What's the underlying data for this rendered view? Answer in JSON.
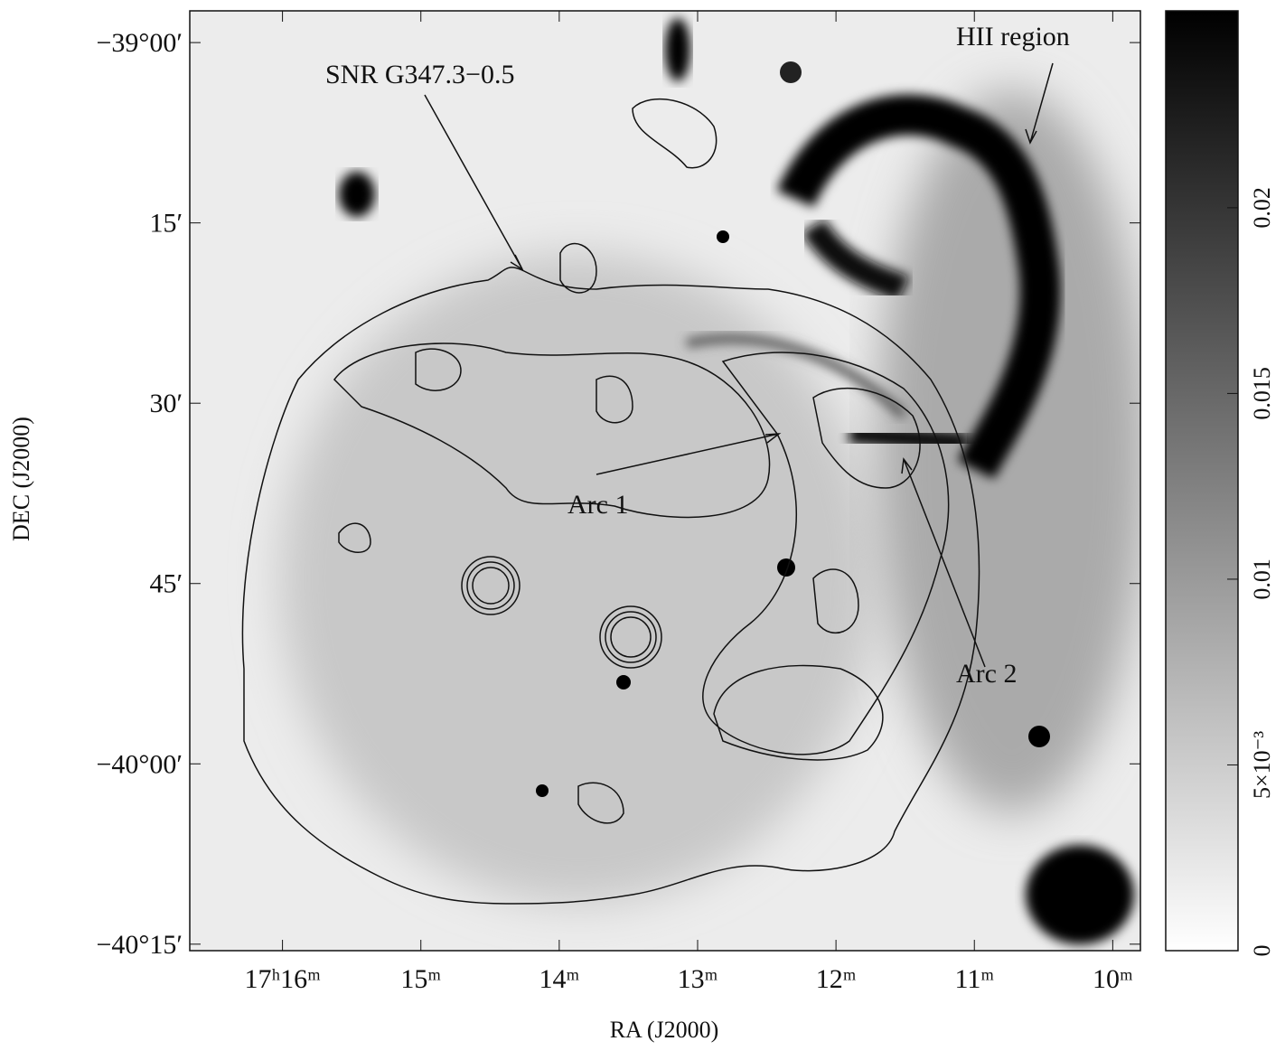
{
  "figure": {
    "x_label": "RA (J2000)",
    "y_label": "DEC (J2000)",
    "xlim": [
      16.67,
      9.8
    ],
    "xticks": [
      {
        "value": 16,
        "label": "17ʰ16ᵐ"
      },
      {
        "value": 15,
        "label": "15ᵐ"
      },
      {
        "value": 14,
        "label": "14ᵐ"
      },
      {
        "value": 13,
        "label": "13ᵐ"
      },
      {
        "value": 12,
        "label": "12ᵐ"
      },
      {
        "value": 11,
        "label": "11ᵐ"
      },
      {
        "value": 10,
        "label": "10ᵐ"
      }
    ],
    "ylim": [
      -40.259,
      -38.956
    ],
    "yticks": [
      {
        "value": -39,
        "label": "−39°00′"
      },
      {
        "value": -39.25,
        "label": "15′"
      },
      {
        "value": -39.5,
        "label": "30′"
      },
      {
        "value": -39.75,
        "label": "45′"
      },
      {
        "value": -40,
        "label": "−40°00′"
      },
      {
        "value": -40.25,
        "label": "−40°15′"
      }
    ],
    "annotations": {
      "snr": "SNR G347.3−0.5",
      "hii": "HII region",
      "arc1": "Arc 1",
      "arc2": "Arc 2"
    },
    "colorbar": {
      "lim": [
        0,
        0.0253
      ],
      "ticks": [
        {
          "value": 0.02,
          "label": "0.02"
        },
        {
          "value": 0.015,
          "label": "0.015"
        },
        {
          "value": 0.01,
          "label": "0.01"
        },
        {
          "value": 0.005,
          "label": "5×10⁻³"
        },
        {
          "value": 0,
          "label": "0"
        }
      ]
    }
  }
}
